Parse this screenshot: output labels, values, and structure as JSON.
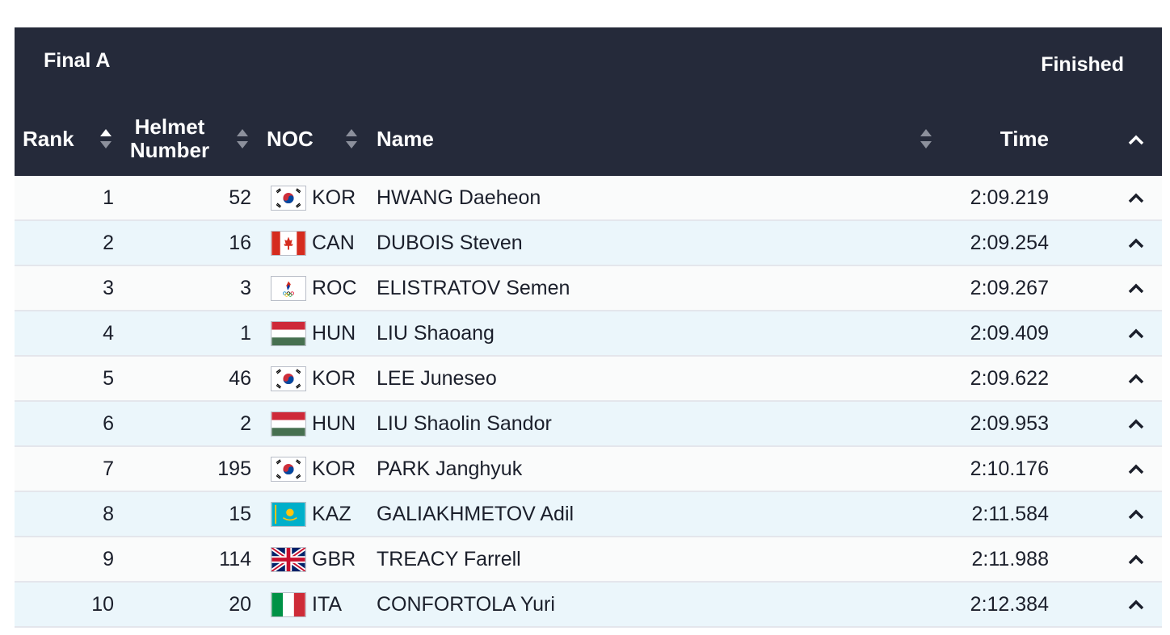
{
  "header": {
    "title": "Final A",
    "status": "Finished",
    "columns": {
      "rank": "Rank",
      "helmet_line1": "Helmet",
      "helmet_line2": "Number",
      "noc": "NOC",
      "name": "Name",
      "time": "Time"
    },
    "bg_color": "#252a3a"
  },
  "rows": [
    {
      "rank": "1",
      "helmet": "52",
      "noc": "KOR",
      "flag": "kor-flag-icon",
      "name": "HWANG Daeheon",
      "time": "2:09.219"
    },
    {
      "rank": "2",
      "helmet": "16",
      "noc": "CAN",
      "flag": "can-flag-icon",
      "name": "DUBOIS Steven",
      "time": "2:09.254"
    },
    {
      "rank": "3",
      "helmet": "3",
      "noc": "ROC",
      "flag": "roc-flag-icon",
      "name": "ELISTRATOV Semen",
      "time": "2:09.267"
    },
    {
      "rank": "4",
      "helmet": "1",
      "noc": "HUN",
      "flag": "hun-flag-icon",
      "name": "LIU Shaoang",
      "time": "2:09.409"
    },
    {
      "rank": "5",
      "helmet": "46",
      "noc": "KOR",
      "flag": "kor-flag-icon",
      "name": "LEE Juneseo",
      "time": "2:09.622"
    },
    {
      "rank": "6",
      "helmet": "2",
      "noc": "HUN",
      "flag": "hun-flag-icon",
      "name": "LIU Shaolin Sandor",
      "time": "2:09.953"
    },
    {
      "rank": "7",
      "helmet": "195",
      "noc": "KOR",
      "flag": "kor-flag-icon",
      "name": "PARK Janghyuk",
      "time": "2:10.176"
    },
    {
      "rank": "8",
      "helmet": "15",
      "noc": "KAZ",
      "flag": "kaz-flag-icon",
      "name": "GALIAKHMETOV Adil",
      "time": "2:11.584"
    },
    {
      "rank": "9",
      "helmet": "114",
      "noc": "GBR",
      "flag": "gbr-flag-icon",
      "name": "TREACY Farrell",
      "time": "2:11.988"
    },
    {
      "rank": "10",
      "helmet": "20",
      "noc": "ITA",
      "flag": "ita-flag-icon",
      "name": "CONFORTOLA Yuri",
      "time": "2:12.384"
    }
  ]
}
